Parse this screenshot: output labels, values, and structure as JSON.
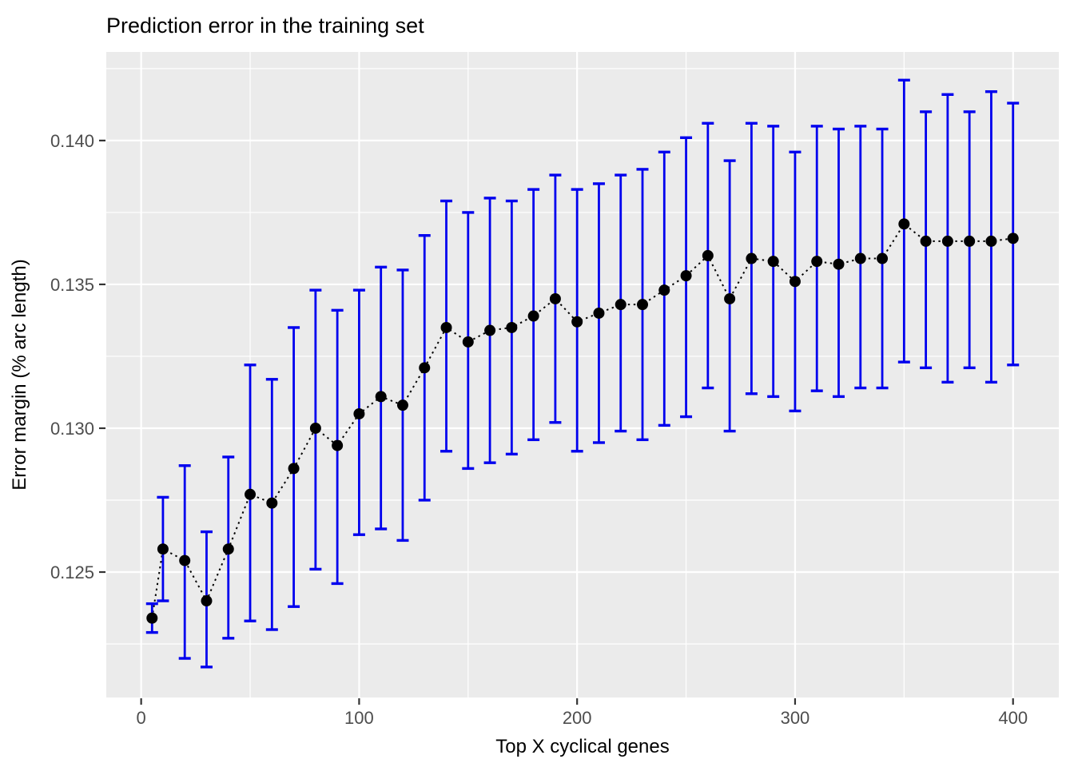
{
  "chart_data": {
    "type": "scatter",
    "title": "Prediction error in the training set",
    "xlabel": "Top X cyclical genes",
    "ylabel": "Error margin (% arc length)",
    "x": [
      5,
      10,
      20,
      30,
      40,
      50,
      60,
      70,
      80,
      90,
      100,
      110,
      120,
      130,
      140,
      150,
      160,
      170,
      180,
      190,
      200,
      210,
      220,
      230,
      240,
      250,
      260,
      270,
      280,
      290,
      300,
      310,
      320,
      330,
      340,
      350,
      360,
      370,
      380,
      390,
      400
    ],
    "series": [
      {
        "name": "error margin",
        "values": [
          0.1234,
          0.1258,
          0.1254,
          0.124,
          0.1258,
          0.1277,
          0.1274,
          0.1286,
          0.13,
          0.1294,
          0.1305,
          0.1311,
          0.1308,
          0.1321,
          0.1335,
          0.133,
          0.1334,
          0.1335,
          0.1339,
          0.1345,
          0.1337,
          0.134,
          0.1343,
          0.1343,
          0.1348,
          0.1353,
          0.136,
          0.1345,
          0.1359,
          0.1358,
          0.1351,
          0.1358,
          0.1357,
          0.1359,
          0.1359,
          0.1371,
          0.1365,
          0.1365,
          0.1365,
          0.1365,
          0.1366
        ],
        "ymin": [
          0.1229,
          0.124,
          0.122,
          0.1217,
          0.1227,
          0.1233,
          0.123,
          0.1238,
          0.1251,
          0.1246,
          0.1263,
          0.1265,
          0.1261,
          0.1275,
          0.1292,
          0.1286,
          0.1288,
          0.1291,
          0.1296,
          0.1302,
          0.1292,
          0.1295,
          0.1299,
          0.1296,
          0.1301,
          0.1304,
          0.1314,
          0.1299,
          0.1312,
          0.1311,
          0.1306,
          0.1313,
          0.1311,
          0.1314,
          0.1314,
          0.1323,
          0.1321,
          0.1316,
          0.1321,
          0.1316,
          0.1322
        ],
        "ymax": [
          0.1239,
          0.1276,
          0.1287,
          0.1264,
          0.129,
          0.1322,
          0.1317,
          0.1335,
          0.1348,
          0.1341,
          0.1348,
          0.1356,
          0.1355,
          0.1367,
          0.1379,
          0.1375,
          0.138,
          0.1379,
          0.1383,
          0.1388,
          0.1383,
          0.1385,
          0.1388,
          0.139,
          0.1396,
          0.1401,
          0.1406,
          0.1393,
          0.1406,
          0.1405,
          0.1396,
          0.1405,
          0.1404,
          0.1405,
          0.1404,
          0.1421,
          0.141,
          0.1416,
          0.141,
          0.1417,
          0.1413
        ]
      }
    ],
    "xlim": [
      -16,
      421
    ],
    "ylim": [
      0.12064,
      0.14308
    ],
    "x_ticks": [
      0,
      100,
      200,
      300,
      400
    ],
    "x_tick_labels": [
      "0",
      "100",
      "200",
      "300",
      "400"
    ],
    "y_ticks": [
      0.125,
      0.13,
      0.135,
      0.14
    ],
    "y_tick_labels": [
      "0.125",
      "0.130",
      "0.135",
      "0.140"
    ],
    "x_minor_gridlines": [
      50,
      150,
      250,
      350
    ],
    "y_minor_gridlines": [
      0.1225,
      0.1275,
      0.1325,
      0.1375,
      0.1425
    ],
    "grid": "on",
    "legend": "none",
    "style": {
      "panel_background": "#EBEBEB",
      "gridline_color": "#FFFFFF",
      "errorbar_color": "#0000EE",
      "point_color": "#000000",
      "line_color": "#000000",
      "line_style": "dotted",
      "tick_label_color": "#4D4D4D",
      "tick_mark_color": "#333333",
      "title_color": "#000000"
    }
  }
}
